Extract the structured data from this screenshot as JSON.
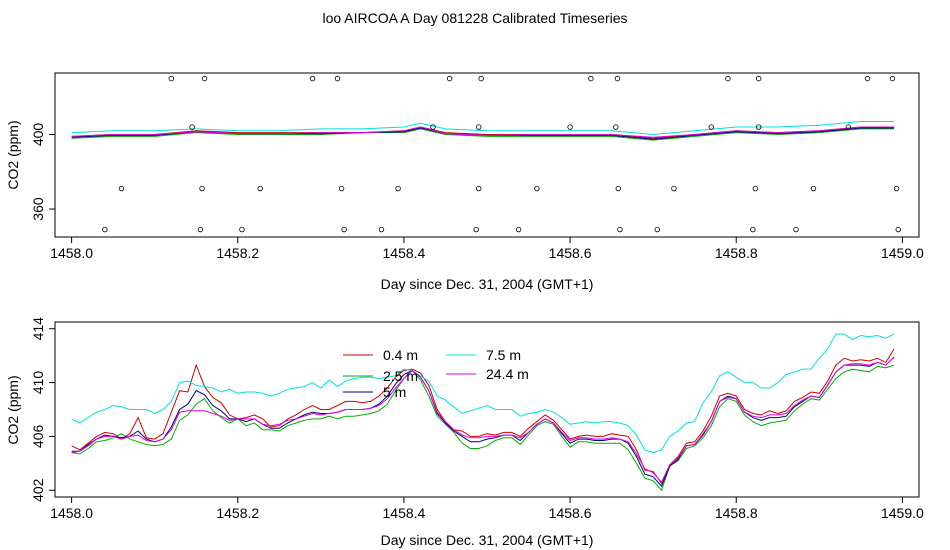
{
  "title": "loo AIRCOA A  Day 081228  Calibrated Timeseries",
  "chart_data": [
    {
      "type": "line",
      "xlabel": "Day since Dec. 31, 2004 (GMT+1)",
      "ylabel": "CO2 (ppm)",
      "xlim": [
        1457.98,
        1459.02
      ],
      "ylim": [
        345,
        433
      ],
      "xticks": [
        "1458.0",
        "1458.2",
        "1458.4",
        "1458.6",
        "1458.8",
        "1459.0"
      ],
      "yticks": [
        "360",
        "400"
      ],
      "x": [
        1458.0,
        1458.05,
        1458.1,
        1458.15,
        1458.2,
        1458.25,
        1458.3,
        1458.35,
        1458.4,
        1458.42,
        1458.45,
        1458.5,
        1458.55,
        1458.6,
        1458.65,
        1458.7,
        1458.75,
        1458.8,
        1458.85,
        1458.9,
        1458.95,
        1458.99
      ],
      "series": [
        {
          "color": "#d00000",
          "values": [
            399,
            400,
            400,
            402,
            401,
            401,
            401,
            401,
            402,
            404,
            401,
            400,
            400,
            400,
            400,
            398,
            400,
            402,
            401,
            402,
            404,
            404
          ]
        },
        {
          "color": "#00b000",
          "values": [
            398,
            399,
            399,
            401,
            400,
            400,
            400,
            401,
            401,
            403,
            400,
            399,
            399,
            399,
            399,
            397,
            399,
            401,
            400,
            401,
            403,
            403
          ]
        },
        {
          "color": "#000080",
          "values": [
            398.5,
            399.5,
            399.5,
            401.5,
            400.5,
            400.5,
            400.5,
            401,
            401.5,
            403.5,
            400.5,
            399.5,
            399.5,
            399.5,
            399.5,
            397.5,
            399.5,
            401.5,
            400.5,
            401.5,
            403.5,
            403.5
          ]
        },
        {
          "color": "#00e0e0",
          "values": [
            401,
            402,
            402,
            403,
            402,
            402,
            403,
            403,
            404,
            406,
            403,
            402,
            402,
            402,
            402,
            400,
            402,
            404,
            404,
            405,
            407,
            407
          ]
        },
        {
          "color": "#e000e0",
          "values": [
            399,
            400,
            400,
            401.5,
            400.5,
            400.5,
            401,
            401,
            402,
            404,
            400.5,
            399.5,
            400,
            400,
            400,
            398.5,
            400,
            402,
            401,
            402,
            404,
            404
          ]
        }
      ],
      "markers": [
        {
          "x": 1458.12,
          "y": 430
        },
        {
          "x": 1458.16,
          "y": 430
        },
        {
          "x": 1458.29,
          "y": 430
        },
        {
          "x": 1458.32,
          "y": 430
        },
        {
          "x": 1458.455,
          "y": 430
        },
        {
          "x": 1458.493,
          "y": 430
        },
        {
          "x": 1458.625,
          "y": 430
        },
        {
          "x": 1458.657,
          "y": 430
        },
        {
          "x": 1458.79,
          "y": 430
        },
        {
          "x": 1458.827,
          "y": 430
        },
        {
          "x": 1458.958,
          "y": 430
        },
        {
          "x": 1458.988,
          "y": 430
        },
        {
          "x": 1458.145,
          "y": 404
        },
        {
          "x": 1458.435,
          "y": 404
        },
        {
          "x": 1458.49,
          "y": 404
        },
        {
          "x": 1458.6,
          "y": 404
        },
        {
          "x": 1458.655,
          "y": 404
        },
        {
          "x": 1458.77,
          "y": 404
        },
        {
          "x": 1458.827,
          "y": 404
        },
        {
          "x": 1458.935,
          "y": 404
        },
        {
          "x": 1458.06,
          "y": 371
        },
        {
          "x": 1458.157,
          "y": 371
        },
        {
          "x": 1458.227,
          "y": 371
        },
        {
          "x": 1458.325,
          "y": 371
        },
        {
          "x": 1458.393,
          "y": 371
        },
        {
          "x": 1458.49,
          "y": 371
        },
        {
          "x": 1458.56,
          "y": 371
        },
        {
          "x": 1458.658,
          "y": 371
        },
        {
          "x": 1458.725,
          "y": 371
        },
        {
          "x": 1458.823,
          "y": 371
        },
        {
          "x": 1458.893,
          "y": 371
        },
        {
          "x": 1458.993,
          "y": 371
        },
        {
          "x": 1458.04,
          "y": 349
        },
        {
          "x": 1458.155,
          "y": 349
        },
        {
          "x": 1458.205,
          "y": 349
        },
        {
          "x": 1458.328,
          "y": 349
        },
        {
          "x": 1458.373,
          "y": 349
        },
        {
          "x": 1458.487,
          "y": 349
        },
        {
          "x": 1458.538,
          "y": 349
        },
        {
          "x": 1458.66,
          "y": 349
        },
        {
          "x": 1458.705,
          "y": 349
        },
        {
          "x": 1458.82,
          "y": 349
        },
        {
          "x": 1458.872,
          "y": 349
        },
        {
          "x": 1458.995,
          "y": 349
        }
      ]
    },
    {
      "type": "line",
      "xlabel": "Day since Dec. 31, 2004 (GMT+1)",
      "ylabel": "CO2 (ppm)",
      "xlim": [
        1457.98,
        1459.02
      ],
      "ylim": [
        401.5,
        414.5
      ],
      "xticks": [
        "1458.0",
        "1458.2",
        "1458.4",
        "1458.6",
        "1458.8",
        "1459.0"
      ],
      "yticks": [
        "402",
        "406",
        "410",
        "414"
      ],
      "legend_position": "top-center",
      "x": [
        1458.0,
        1458.01,
        1458.02,
        1458.03,
        1458.04,
        1458.05,
        1458.06,
        1458.07,
        1458.08,
        1458.09,
        1458.1,
        1458.11,
        1458.12,
        1458.13,
        1458.14,
        1458.15,
        1458.16,
        1458.17,
        1458.18,
        1458.19,
        1458.2,
        1458.21,
        1458.22,
        1458.23,
        1458.24,
        1458.25,
        1458.26,
        1458.27,
        1458.28,
        1458.29,
        1458.3,
        1458.31,
        1458.32,
        1458.33,
        1458.34,
        1458.35,
        1458.36,
        1458.37,
        1458.38,
        1458.39,
        1458.4,
        1458.41,
        1458.42,
        1458.43,
        1458.44,
        1458.45,
        1458.46,
        1458.47,
        1458.48,
        1458.49,
        1458.5,
        1458.51,
        1458.52,
        1458.53,
        1458.54,
        1458.55,
        1458.56,
        1458.57,
        1458.58,
        1458.59,
        1458.6,
        1458.61,
        1458.62,
        1458.63,
        1458.64,
        1458.65,
        1458.66,
        1458.67,
        1458.68,
        1458.69,
        1458.7,
        1458.71,
        1458.72,
        1458.73,
        1458.74,
        1458.75,
        1458.76,
        1458.77,
        1458.78,
        1458.79,
        1458.8,
        1458.81,
        1458.82,
        1458.83,
        1458.84,
        1458.85,
        1458.86,
        1458.87,
        1458.88,
        1458.89,
        1458.9,
        1458.91,
        1458.92,
        1458.93,
        1458.94,
        1458.95,
        1458.96,
        1458.97,
        1458.98,
        1458.99
      ],
      "series": [
        {
          "name": "0.4 m",
          "color": "#d00000",
          "values": [
            405.3,
            405.0,
            405.5,
            406.0,
            406.3,
            406.2,
            405.8,
            406.2,
            407.4,
            405.9,
            405.8,
            406.2,
            407.8,
            409.4,
            409.3,
            411.3,
            409.7,
            408.9,
            408.5,
            407.6,
            407.3,
            407.4,
            407.6,
            407.3,
            406.7,
            406.8,
            407.3,
            407.6,
            408.0,
            408.3,
            408.0,
            408.0,
            408.3,
            408.6,
            408.6,
            408.5,
            408.6,
            409.0,
            409.6,
            410.4,
            410.9,
            411.0,
            410.7,
            409.8,
            408.0,
            407.1,
            406.5,
            406.4,
            406.0,
            406.0,
            406.2,
            406.1,
            406.3,
            406.3,
            406.0,
            406.6,
            407.1,
            407.6,
            407.2,
            406.5,
            405.8,
            406.0,
            406.1,
            406.0,
            406.0,
            406.2,
            406.1,
            406.0,
            405.0,
            403.5,
            403.4,
            402.5,
            403.9,
            404.5,
            405.5,
            405.6,
            406.4,
            407.5,
            409.0,
            409.2,
            409.0,
            408.0,
            407.7,
            407.6,
            407.9,
            407.7,
            407.9,
            408.6,
            408.9,
            409.3,
            409.2,
            410.1,
            411.3,
            411.8,
            411.6,
            411.7,
            411.6,
            411.8,
            411.5,
            412.5
          ]
        },
        {
          "name": "2.5 m",
          "color": "#00b000",
          "values": [
            404.8,
            404.7,
            405.1,
            405.6,
            405.7,
            405.9,
            406.2,
            405.8,
            405.6,
            405.4,
            405.3,
            405.4,
            405.8,
            407.2,
            407.6,
            408.4,
            408.8,
            407.9,
            407.4,
            407.0,
            407.3,
            406.8,
            407.0,
            406.5,
            406.5,
            406.4,
            406.8,
            407.0,
            407.2,
            407.3,
            407.3,
            407.5,
            407.3,
            407.5,
            407.5,
            407.6,
            407.7,
            407.9,
            408.4,
            409.4,
            410.3,
            410.9,
            410.2,
            409.0,
            407.5,
            406.9,
            406.3,
            405.5,
            405.1,
            405.1,
            405.3,
            405.7,
            405.9,
            405.9,
            405.4,
            406.1,
            406.8,
            407.1,
            406.9,
            406.0,
            405.2,
            405.6,
            405.6,
            405.5,
            405.5,
            405.5,
            405.5,
            405.0,
            404.0,
            402.9,
            402.7,
            402.0,
            403.8,
            404.2,
            405.1,
            405.3,
            405.9,
            406.8,
            408.2,
            408.8,
            408.6,
            407.6,
            407.1,
            406.8,
            407.0,
            407.1,
            407.2,
            407.9,
            408.4,
            408.8,
            408.7,
            409.5,
            410.3,
            410.8,
            411.0,
            410.9,
            410.8,
            411.2,
            411.1,
            411.3
          ]
        },
        {
          "name": "5 m",
          "color": "#000080",
          "values": [
            404.9,
            404.9,
            405.4,
            405.8,
            406.1,
            406.0,
            405.9,
            406.0,
            406.4,
            405.8,
            405.6,
            405.8,
            406.7,
            408.0,
            408.4,
            409.4,
            409.1,
            408.3,
            407.9,
            407.3,
            407.3,
            407.1,
            407.3,
            406.9,
            406.6,
            406.6,
            407.0,
            407.3,
            407.6,
            407.8,
            407.7,
            407.7,
            407.8,
            408.0,
            408.0,
            408.0,
            408.1,
            408.4,
            409.0,
            409.9,
            410.6,
            410.9,
            410.4,
            409.4,
            407.7,
            407.0,
            406.4,
            406.0,
            405.6,
            405.6,
            405.8,
            405.9,
            406.1,
            406.1,
            405.7,
            406.3,
            406.9,
            407.3,
            407.0,
            406.2,
            405.5,
            405.8,
            405.8,
            405.7,
            405.7,
            405.8,
            405.8,
            405.5,
            404.5,
            403.2,
            403.0,
            402.3,
            403.8,
            404.3,
            405.3,
            405.4,
            406.1,
            407.1,
            408.6,
            409.0,
            408.8,
            407.8,
            407.4,
            407.2,
            407.4,
            407.4,
            407.5,
            408.2,
            408.6,
            409.0,
            408.9,
            409.8,
            410.8,
            411.3,
            411.3,
            411.3,
            411.2,
            411.5,
            411.3,
            411.9
          ]
        },
        {
          "name": "7.5 m",
          "color": "#00e0e0",
          "values": [
            407.3,
            407.0,
            407.4,
            407.8,
            408.0,
            408.3,
            408.2,
            408.0,
            408.0,
            408.0,
            407.7,
            408.0,
            408.6,
            410.0,
            410.1,
            409.8,
            409.7,
            409.6,
            409.3,
            409.5,
            409.2,
            409.3,
            409.3,
            409.2,
            409.0,
            409.2,
            409.5,
            409.6,
            409.7,
            410.0,
            409.6,
            410.2,
            409.7,
            410.1,
            410.3,
            410.4,
            410.4,
            410.3,
            410.4,
            410.5,
            411.0,
            410.9,
            410.5,
            410.1,
            409.0,
            408.7,
            408.2,
            407.7,
            407.9,
            408.1,
            408.3,
            408.0,
            408.0,
            408.0,
            407.5,
            407.7,
            407.8,
            408.0,
            407.8,
            407.4,
            406.9,
            407.0,
            407.1,
            407.0,
            407.1,
            407.1,
            407.0,
            406.8,
            406.1,
            405.0,
            404.8,
            405.0,
            406.0,
            406.4,
            407.0,
            407.1,
            408.5,
            409.3,
            410.5,
            410.8,
            410.4,
            410.0,
            410.0,
            409.6,
            409.6,
            410.0,
            410.6,
            410.8,
            411.0,
            411.0,
            411.8,
            412.5,
            413.6,
            413.6,
            413.2,
            413.5,
            413.4,
            413.5,
            413.3,
            413.6
          ]
        },
        {
          "name": "24.4 m",
          "color": "#e000e0",
          "values": [
            404.8,
            404.9,
            405.3,
            405.8,
            406.0,
            406.0,
            405.8,
            406.0,
            406.1,
            405.7,
            405.6,
            405.8,
            406.5,
            407.8,
            407.9,
            407.9,
            407.9,
            407.7,
            407.5,
            407.2,
            407.3,
            407.3,
            407.3,
            406.9,
            406.8,
            406.9,
            407.2,
            407.3,
            407.5,
            407.7,
            407.6,
            407.7,
            407.8,
            408.0,
            408.0,
            408.0,
            408.1,
            408.3,
            408.8,
            409.6,
            410.3,
            410.9,
            410.4,
            409.4,
            407.8,
            407.1,
            406.5,
            406.1,
            405.9,
            405.9,
            406.0,
            406.0,
            406.1,
            406.1,
            405.9,
            406.3,
            406.9,
            407.3,
            407.0,
            406.3,
            405.7,
            405.9,
            405.9,
            405.8,
            405.8,
            405.9,
            405.8,
            405.6,
            404.7,
            403.6,
            403.3,
            402.6,
            403.9,
            404.4,
            405.3,
            405.4,
            406.2,
            407.1,
            408.6,
            408.9,
            408.8,
            407.8,
            407.5,
            407.4,
            407.6,
            407.6,
            407.7,
            408.3,
            408.7,
            409.0,
            408.9,
            409.8,
            410.8,
            411.3,
            411.4,
            411.4,
            411.3,
            411.5,
            411.3,
            411.9
          ]
        }
      ]
    }
  ]
}
